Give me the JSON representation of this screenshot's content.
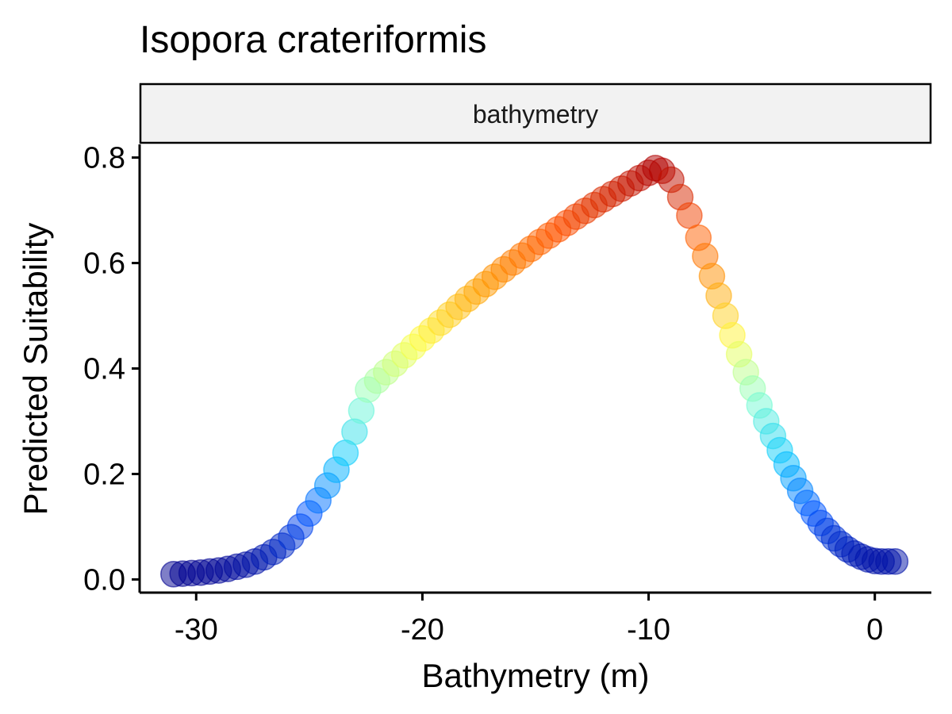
{
  "chart_data": {
    "type": "scatter",
    "title": "Isopora crateriformis",
    "facet_label": "bathymetry",
    "xlabel": "Bathymetry (m)",
    "ylabel": "Predicted Suitability",
    "xlim": [
      -32.5,
      2.5
    ],
    "ylim": [
      -0.025,
      0.825
    ],
    "x_ticks": [
      -30,
      -20,
      -10,
      0
    ],
    "x_tick_labels": [
      "-30",
      "-20",
      "-10",
      "0"
    ],
    "y_ticks": [
      0,
      0.2,
      0.4,
      0.6,
      0.8
    ],
    "y_tick_labels": [
      "0.0",
      "0.2",
      "0.4",
      "0.6",
      "0.8"
    ],
    "grid": false,
    "color_scale": [
      "#00008f",
      "#0050ff",
      "#00c8ff",
      "#80ffd0",
      "#ffff40",
      "#ff9a00",
      "#ff5000",
      "#b00000"
    ],
    "points": [
      {
        "x": -31.0,
        "y": 0.01
      },
      {
        "x": -30.6,
        "y": 0.011
      },
      {
        "x": -30.2,
        "y": 0.012
      },
      {
        "x": -29.8,
        "y": 0.013
      },
      {
        "x": -29.4,
        "y": 0.015
      },
      {
        "x": -29.0,
        "y": 0.017
      },
      {
        "x": -28.6,
        "y": 0.02
      },
      {
        "x": -28.2,
        "y": 0.024
      },
      {
        "x": -27.8,
        "y": 0.028
      },
      {
        "x": -27.4,
        "y": 0.034
      },
      {
        "x": -27.0,
        "y": 0.042
      },
      {
        "x": -26.6,
        "y": 0.052
      },
      {
        "x": -26.2,
        "y": 0.064
      },
      {
        "x": -25.8,
        "y": 0.08
      },
      {
        "x": -25.4,
        "y": 0.1
      },
      {
        "x": -25.0,
        "y": 0.125
      },
      {
        "x": -24.6,
        "y": 0.15
      },
      {
        "x": -24.2,
        "y": 0.178
      },
      {
        "x": -23.8,
        "y": 0.208
      },
      {
        "x": -23.4,
        "y": 0.24
      },
      {
        "x": -23.0,
        "y": 0.28
      },
      {
        "x": -22.7,
        "y": 0.32
      },
      {
        "x": -22.4,
        "y": 0.36
      },
      {
        "x": -22.0,
        "y": 0.377
      },
      {
        "x": -21.6,
        "y": 0.393
      },
      {
        "x": -21.2,
        "y": 0.409
      },
      {
        "x": -20.8,
        "y": 0.425
      },
      {
        "x": -20.4,
        "y": 0.441
      },
      {
        "x": -20.0,
        "y": 0.457
      },
      {
        "x": -19.6,
        "y": 0.472
      },
      {
        "x": -19.2,
        "y": 0.487
      },
      {
        "x": -18.8,
        "y": 0.502
      },
      {
        "x": -18.4,
        "y": 0.517
      },
      {
        "x": -18.0,
        "y": 0.532
      },
      {
        "x": -17.6,
        "y": 0.546
      },
      {
        "x": -17.2,
        "y": 0.56
      },
      {
        "x": -16.8,
        "y": 0.574
      },
      {
        "x": -16.4,
        "y": 0.588
      },
      {
        "x": -16.0,
        "y": 0.601
      },
      {
        "x": -15.6,
        "y": 0.614
      },
      {
        "x": -15.2,
        "y": 0.627
      },
      {
        "x": -14.8,
        "y": 0.64
      },
      {
        "x": -14.4,
        "y": 0.652
      },
      {
        "x": -14.0,
        "y": 0.664
      },
      {
        "x": -13.6,
        "y": 0.676
      },
      {
        "x": -13.2,
        "y": 0.688
      },
      {
        "x": -12.8,
        "y": 0.699
      },
      {
        "x": -12.4,
        "y": 0.71
      },
      {
        "x": -12.0,
        "y": 0.721
      },
      {
        "x": -11.6,
        "y": 0.731
      },
      {
        "x": -11.2,
        "y": 0.741
      },
      {
        "x": -10.8,
        "y": 0.751
      },
      {
        "x": -10.4,
        "y": 0.761
      },
      {
        "x": -10.0,
        "y": 0.771
      },
      {
        "x": -9.7,
        "y": 0.78
      },
      {
        "x": -9.4,
        "y": 0.775
      },
      {
        "x": -9.0,
        "y": 0.758
      },
      {
        "x": -8.6,
        "y": 0.725
      },
      {
        "x": -8.2,
        "y": 0.69
      },
      {
        "x": -7.8,
        "y": 0.648
      },
      {
        "x": -7.5,
        "y": 0.613
      },
      {
        "x": -7.2,
        "y": 0.575
      },
      {
        "x": -6.9,
        "y": 0.538
      },
      {
        "x": -6.6,
        "y": 0.5
      },
      {
        "x": -6.3,
        "y": 0.463
      },
      {
        "x": -6.0,
        "y": 0.427
      },
      {
        "x": -5.7,
        "y": 0.393
      },
      {
        "x": -5.4,
        "y": 0.362
      },
      {
        "x": -5.1,
        "y": 0.33
      },
      {
        "x": -4.8,
        "y": 0.3
      },
      {
        "x": -4.5,
        "y": 0.272
      },
      {
        "x": -4.2,
        "y": 0.245
      },
      {
        "x": -3.9,
        "y": 0.218
      },
      {
        "x": -3.6,
        "y": 0.192
      },
      {
        "x": -3.3,
        "y": 0.168
      },
      {
        "x": -3.0,
        "y": 0.145
      },
      {
        "x": -2.7,
        "y": 0.125
      },
      {
        "x": -2.4,
        "y": 0.107
      },
      {
        "x": -2.1,
        "y": 0.092
      },
      {
        "x": -1.8,
        "y": 0.078
      },
      {
        "x": -1.5,
        "y": 0.067
      },
      {
        "x": -1.2,
        "y": 0.057
      },
      {
        "x": -0.9,
        "y": 0.049
      },
      {
        "x": -0.6,
        "y": 0.043
      },
      {
        "x": -0.3,
        "y": 0.038
      },
      {
        "x": 0.0,
        "y": 0.035
      },
      {
        "x": 0.3,
        "y": 0.034
      },
      {
        "x": 0.6,
        "y": 0.034
      },
      {
        "x": 0.9,
        "y": 0.034
      }
    ]
  }
}
